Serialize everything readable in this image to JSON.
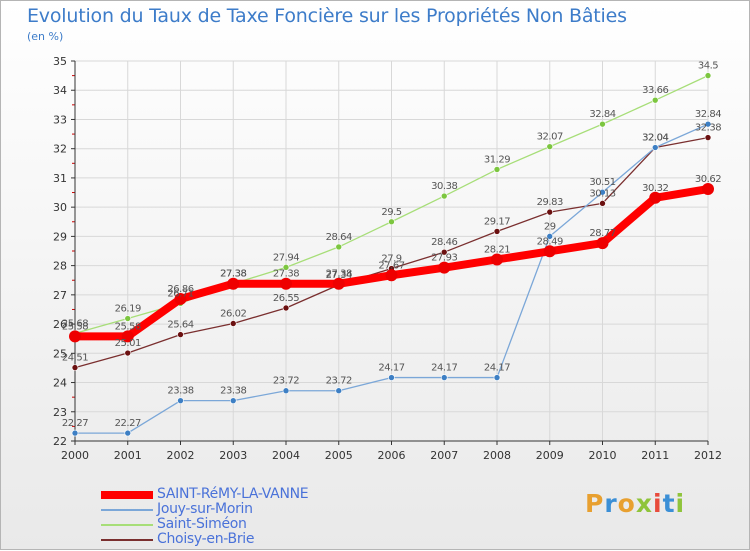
{
  "chart_data": {
    "type": "line",
    "title": "Evolution du Taux de Taxe Foncière sur les Propriétés Non Bâties",
    "ylabel": "(en %)",
    "xlabel": "",
    "ylim": [
      22,
      35
    ],
    "yticks": [
      "22",
      "23",
      "24",
      "25",
      "26",
      "27",
      "28",
      "29",
      "30",
      "31",
      "32",
      "33",
      "34",
      "35"
    ],
    "categories": [
      "2000",
      "2001",
      "2002",
      "2003",
      "2004",
      "2005",
      "2006",
      "2007",
      "2008",
      "2009",
      "2010",
      "2011",
      "2012"
    ],
    "grid": true,
    "series": [
      {
        "name": "Choisy-en-Brie",
        "color": "#7a2f2f",
        "marker": "#6b1010",
        "values": [
          24.51,
          25.01,
          25.64,
          26.02,
          26.55,
          27.34,
          27.9,
          28.46,
          29.17,
          29.83,
          30.13,
          32.04,
          32.38
        ]
      },
      {
        "name": "Jouy-sur-Morin",
        "color": "#7ba7d8",
        "marker": "#3d7fc4",
        "values": [
          22.27,
          22.27,
          23.38,
          23.38,
          23.72,
          23.72,
          24.17,
          24.17,
          24.17,
          29,
          30.51,
          32.04,
          32.84
        ]
      },
      {
        "name": "Saint-Siméon",
        "color": "#a7de78",
        "marker": "#7cc63f",
        "values": [
          25.68,
          26.19,
          26.71,
          27.38,
          27.94,
          28.64,
          29.5,
          30.38,
          31.29,
          32.07,
          32.84,
          33.66,
          34.5
        ]
      },
      {
        "name": "SAINT-RéMY-LA-VANNE",
        "color": "#ff0000",
        "marker": "#ee0000",
        "values": [
          25.58,
          25.58,
          26.86,
          27.38,
          27.38,
          27.38,
          27.67,
          27.93,
          28.21,
          28.49,
          28.77,
          30.32,
          30.62
        ]
      }
    ]
  },
  "legend": [
    {
      "label": "SAINT-RéMY-LA-VANNE",
      "color": "#ff0000"
    },
    {
      "label": "Jouy-sur-Morin",
      "color": "#7ba7d8"
    },
    {
      "label": "Saint-Siméon",
      "color": "#a7de78"
    },
    {
      "label": "Choisy-en-Brie",
      "color": "#7a2f2f"
    }
  ],
  "logo": {
    "letters": [
      "P",
      "r",
      "o",
      "x",
      "i",
      "t",
      "i"
    ]
  }
}
